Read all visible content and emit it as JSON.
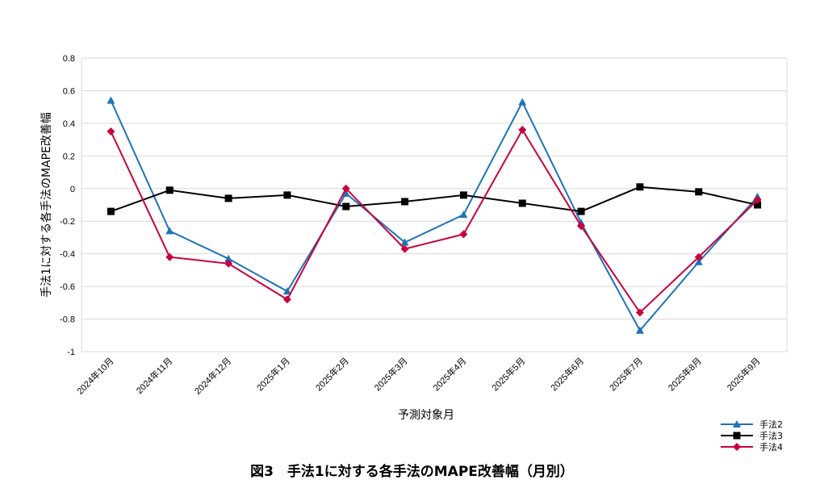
{
  "caption": "図3　手法1に対する各手法のMAPE改善幅（月別）",
  "chart_data": {
    "type": "line",
    "title": "",
    "xlabel": "予測対象月",
    "ylabel": "手法1に対する各手法のMAPE改善幅",
    "ylim": [
      -1,
      0.8
    ],
    "yticks": [
      0.8,
      0.6,
      0.4,
      0.2,
      0,
      -0.2,
      -0.4,
      -0.6,
      -0.8,
      -1
    ],
    "ytick_labels": [
      "0.8",
      "0.6",
      "0.4",
      "0.2",
      "0",
      "-0.2",
      "-0.4",
      "-0.6",
      "-0.8",
      "-1"
    ],
    "grid": true,
    "legend_position": "bottom-right",
    "categories": [
      "2024年10月",
      "2024年11月",
      "2024年12月",
      "2025年1月",
      "2025年2月",
      "2025年3月",
      "2025年4月",
      "2025年5月",
      "2025年6月",
      "2025年7月",
      "2025年8月",
      "2025年9月"
    ],
    "series": [
      {
        "name": "手法2",
        "color": "#1f73b8",
        "marker": "triangle",
        "values": [
          0.54,
          -0.26,
          -0.43,
          -0.63,
          -0.03,
          -0.33,
          -0.16,
          0.53,
          -0.21,
          -0.87,
          -0.45,
          -0.05
        ]
      },
      {
        "name": "手法3",
        "color": "#000000",
        "marker": "square",
        "values": [
          -0.14,
          -0.01,
          -0.06,
          -0.04,
          -0.11,
          -0.08,
          -0.04,
          -0.09,
          -0.14,
          0.01,
          -0.02,
          -0.1
        ]
      },
      {
        "name": "手法4",
        "color": "#c8003c",
        "marker": "diamond",
        "values": [
          0.35,
          -0.42,
          -0.46,
          -0.68,
          0.0,
          -0.37,
          -0.28,
          0.36,
          -0.23,
          -0.76,
          -0.42,
          -0.07
        ]
      }
    ]
  }
}
